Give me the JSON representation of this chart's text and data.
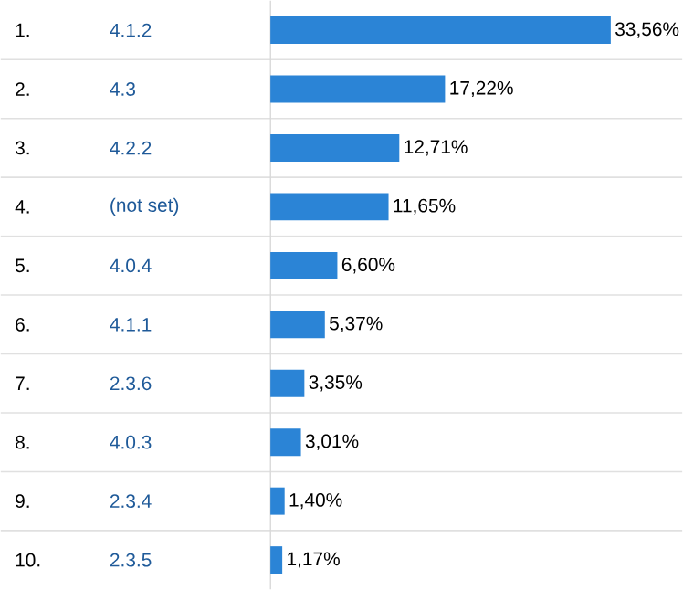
{
  "chart_data": {
    "type": "bar",
    "orientation": "horizontal",
    "categories": [
      "4.1.2",
      "4.3",
      "4.2.2",
      "(not set)",
      "4.0.4",
      "4.1.1",
      "2.3.6",
      "4.0.3",
      "2.3.4",
      "2.3.5"
    ],
    "values": [
      33.56,
      17.22,
      12.71,
      11.65,
      6.6,
      5.37,
      3.35,
      3.01,
      1.4,
      1.17
    ],
    "value_labels": [
      "33,56%",
      "17,22%",
      "12,71%",
      "11,65%",
      "6,60%",
      "5,37%",
      "3,35%",
      "3,01%",
      "1,40%",
      "1,17%"
    ],
    "color": "#2b84d6",
    "annotations": [
      "1.",
      "2.",
      "3.",
      "4.",
      "5.",
      "6.",
      "7.",
      "8.",
      "9.",
      "10."
    ],
    "grid": "y"
  }
}
